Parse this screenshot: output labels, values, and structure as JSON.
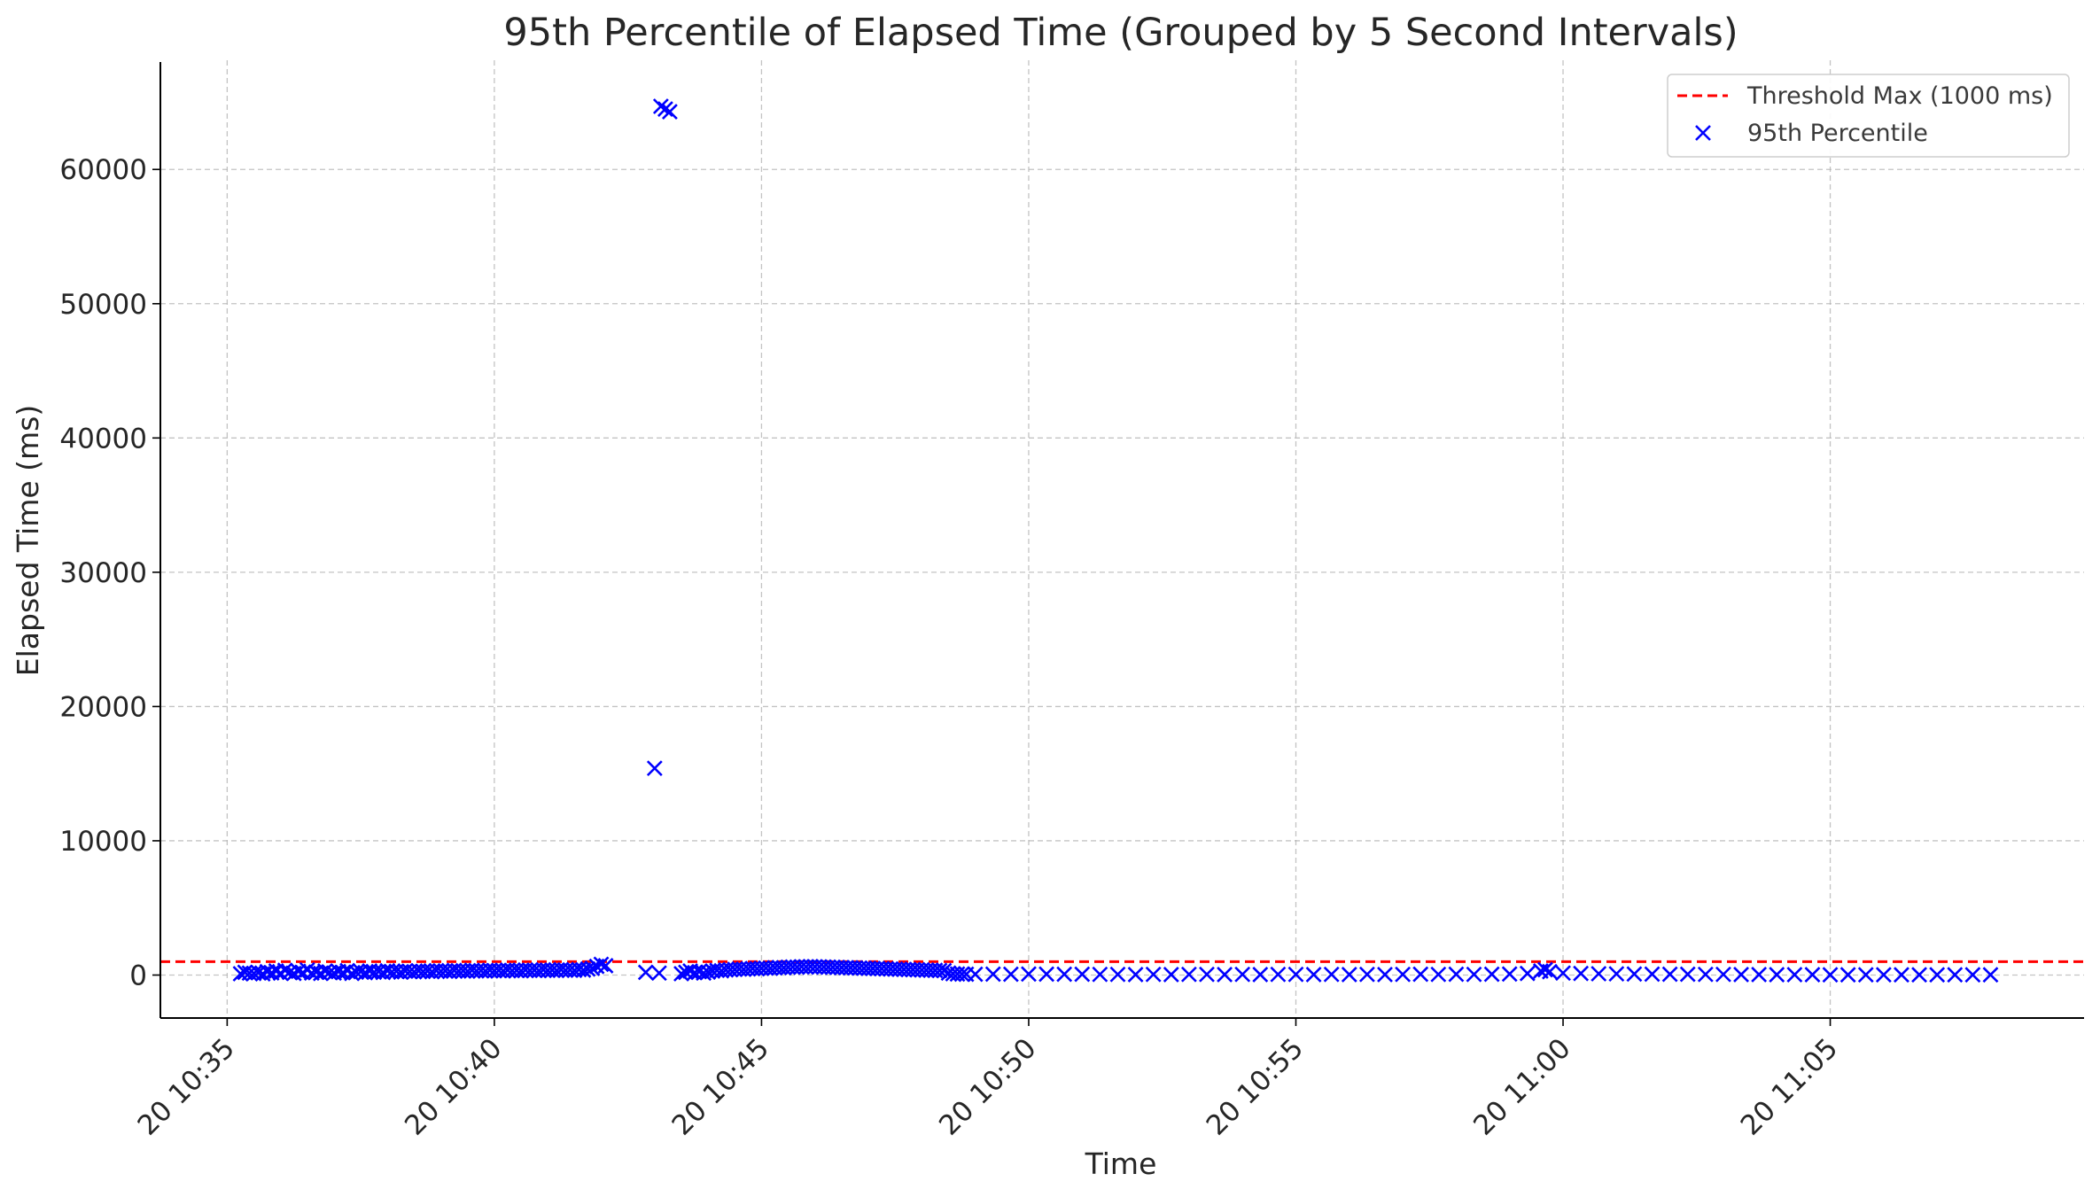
{
  "chart_data": {
    "type": "scatter",
    "title": "95th Percentile of Elapsed Time (Grouped by 5 Second Intervals)",
    "xlabel": "Time",
    "ylabel": "Elapsed Time (ms)",
    "x_ticks": [
      "20 10:35",
      "20 10:40",
      "20 10:45",
      "20 10:50",
      "20 10:55",
      "20 11:00",
      "20 11:05"
    ],
    "y_ticks": [
      "0",
      "10000",
      "20000",
      "30000",
      "40000",
      "50000",
      "60000"
    ],
    "xlim": [
      "10:33:45",
      "11:09:45"
    ],
    "ylim": [
      -3200,
      68000
    ],
    "grid": true,
    "legend_position": "top-right",
    "threshold": {
      "name": "Threshold Max (1000 ms)",
      "value": 1000,
      "color": "#ff0000",
      "style": "dashed"
    },
    "series": [
      {
        "name": "95th Percentile",
        "marker": "x",
        "color": "#0000ff",
        "points": [
          [
            "10:35:15",
            100
          ],
          [
            "10:35:20",
            200
          ],
          [
            "10:35:25",
            150
          ],
          [
            "10:35:30",
            120
          ],
          [
            "10:35:35",
            180
          ],
          [
            "10:35:40",
            90
          ],
          [
            "10:35:45",
            250
          ],
          [
            "10:35:50",
            160
          ],
          [
            "10:35:55",
            300
          ],
          [
            "10:36:00",
            140
          ],
          [
            "10:36:05",
            350
          ],
          [
            "10:36:10",
            200
          ],
          [
            "10:36:15",
            120
          ],
          [
            "10:36:20",
            280
          ],
          [
            "10:36:25",
            180
          ],
          [
            "10:36:30",
            380
          ],
          [
            "10:36:35",
            150
          ],
          [
            "10:36:40",
            230
          ],
          [
            "10:36:45",
            120
          ],
          [
            "10:36:50",
            300
          ],
          [
            "10:36:55",
            200
          ],
          [
            "10:37:00",
            150
          ],
          [
            "10:37:05",
            260
          ],
          [
            "10:37:10",
            180
          ],
          [
            "10:37:15",
            330
          ],
          [
            "10:37:20",
            120
          ],
          [
            "10:37:25",
            220
          ],
          [
            "10:37:30",
            260
          ],
          [
            "10:37:35",
            180
          ],
          [
            "10:37:40",
            300
          ],
          [
            "10:37:45",
            210
          ],
          [
            "10:37:50",
            260
          ],
          [
            "10:37:55",
            190
          ],
          [
            "10:38:00",
            320
          ],
          [
            "10:38:05",
            240
          ],
          [
            "10:38:10",
            280
          ],
          [
            "10:38:15",
            220
          ],
          [
            "10:38:20",
            300
          ],
          [
            "10:38:25",
            260
          ],
          [
            "10:38:30",
            240
          ],
          [
            "10:38:35",
            310
          ],
          [
            "10:38:40",
            270
          ],
          [
            "10:38:45",
            300
          ],
          [
            "10:38:50",
            250
          ],
          [
            "10:38:55",
            330
          ],
          [
            "10:39:00",
            290
          ],
          [
            "10:39:05",
            310
          ],
          [
            "10:39:10",
            270
          ],
          [
            "10:39:15",
            340
          ],
          [
            "10:39:20",
            300
          ],
          [
            "10:39:25",
            320
          ],
          [
            "10:39:30",
            290
          ],
          [
            "10:39:35",
            350
          ],
          [
            "10:39:40",
            310
          ],
          [
            "10:39:45",
            330
          ],
          [
            "10:39:50",
            300
          ],
          [
            "10:39:55",
            360
          ],
          [
            "10:40:00",
            320
          ],
          [
            "10:40:05",
            340
          ],
          [
            "10:40:10",
            310
          ],
          [
            "10:40:15",
            370
          ],
          [
            "10:40:20",
            330
          ],
          [
            "10:40:25",
            350
          ],
          [
            "10:40:30",
            320
          ],
          [
            "10:40:35",
            380
          ],
          [
            "10:40:40",
            340
          ],
          [
            "10:40:45",
            360
          ],
          [
            "10:40:50",
            330
          ],
          [
            "10:40:55",
            390
          ],
          [
            "10:41:00",
            350
          ],
          [
            "10:41:05",
            370
          ],
          [
            "10:41:10",
            340
          ],
          [
            "10:41:15",
            400
          ],
          [
            "10:41:20",
            360
          ],
          [
            "10:41:25",
            380
          ],
          [
            "10:41:30",
            350
          ],
          [
            "10:41:35",
            410
          ],
          [
            "10:41:40",
            370
          ],
          [
            "10:41:45",
            450
          ],
          [
            "10:41:50",
            500
          ],
          [
            "10:41:55",
            650
          ],
          [
            "10:42:00",
            800
          ],
          [
            "10:42:05",
            700
          ],
          [
            "10:42:50",
            200
          ],
          [
            "10:43:05",
            150
          ],
          [
            "10:43:00",
            15400
          ],
          [
            "10:43:07",
            64700
          ],
          [
            "10:43:12",
            64500
          ],
          [
            "10:43:17",
            64300
          ],
          [
            "10:43:30",
            100
          ],
          [
            "10:43:35",
            200
          ],
          [
            "10:43:40",
            300
          ],
          [
            "10:43:45",
            180
          ],
          [
            "10:43:50",
            250
          ],
          [
            "10:43:55",
            150
          ],
          [
            "10:44:00",
            220
          ],
          [
            "10:44:05",
            300
          ],
          [
            "10:44:10",
            350
          ],
          [
            "10:44:15",
            320
          ],
          [
            "10:44:20",
            380
          ],
          [
            "10:44:25",
            400
          ],
          [
            "10:44:30",
            420
          ],
          [
            "10:44:35",
            450
          ],
          [
            "10:44:40",
            430
          ],
          [
            "10:44:45",
            460
          ],
          [
            "10:44:50",
            480
          ],
          [
            "10:44:55",
            470
          ],
          [
            "10:45:00",
            500
          ],
          [
            "10:45:05",
            520
          ],
          [
            "10:45:10",
            510
          ],
          [
            "10:45:15",
            540
          ],
          [
            "10:45:20",
            560
          ],
          [
            "10:45:25",
            550
          ],
          [
            "10:45:30",
            580
          ],
          [
            "10:45:35",
            600
          ],
          [
            "10:45:40",
            590
          ],
          [
            "10:45:45",
            620
          ],
          [
            "10:45:50",
            610
          ],
          [
            "10:45:55",
            630
          ],
          [
            "10:46:00",
            620
          ],
          [
            "10:46:05",
            610
          ],
          [
            "10:46:10",
            600
          ],
          [
            "10:46:15",
            590
          ],
          [
            "10:46:20",
            580
          ],
          [
            "10:46:25",
            570
          ],
          [
            "10:46:30",
            560
          ],
          [
            "10:46:35",
            550
          ],
          [
            "10:46:40",
            540
          ],
          [
            "10:46:45",
            530
          ],
          [
            "10:46:50",
            520
          ],
          [
            "10:46:55",
            510
          ],
          [
            "10:47:00",
            500
          ],
          [
            "10:47:05",
            490
          ],
          [
            "10:47:10",
            480
          ],
          [
            "10:47:15",
            470
          ],
          [
            "10:47:20",
            460
          ],
          [
            "10:47:25",
            450
          ],
          [
            "10:47:30",
            440
          ],
          [
            "10:47:35",
            430
          ],
          [
            "10:47:40",
            420
          ],
          [
            "10:47:45",
            410
          ],
          [
            "10:47:50",
            400
          ],
          [
            "10:47:55",
            390
          ],
          [
            "10:48:00",
            380
          ],
          [
            "10:48:05",
            370
          ],
          [
            "10:48:10",
            360
          ],
          [
            "10:48:15",
            350
          ],
          [
            "10:48:20",
            340
          ],
          [
            "10:48:25",
            330
          ],
          [
            "10:48:30",
            150
          ],
          [
            "10:48:35",
            100
          ],
          [
            "10:48:40",
            80
          ],
          [
            "10:48:45",
            70
          ],
          [
            "10:48:50",
            60
          ],
          [
            "10:49:00",
            60
          ],
          [
            "10:49:20",
            70
          ],
          [
            "10:49:40",
            60
          ],
          [
            "10:50:00",
            80
          ],
          [
            "10:50:20",
            70
          ],
          [
            "10:50:40",
            60
          ],
          [
            "10:51:00",
            60
          ],
          [
            "10:51:20",
            50
          ],
          [
            "10:51:40",
            50
          ],
          [
            "10:52:00",
            40
          ],
          [
            "10:52:20",
            50
          ],
          [
            "10:52:40",
            40
          ],
          [
            "10:53:00",
            50
          ],
          [
            "10:53:20",
            50
          ],
          [
            "10:53:40",
            40
          ],
          [
            "10:54:00",
            50
          ],
          [
            "10:54:20",
            40
          ],
          [
            "10:54:40",
            50
          ],
          [
            "10:55:00",
            50
          ],
          [
            "10:55:20",
            40
          ],
          [
            "10:55:40",
            50
          ],
          [
            "10:56:00",
            40
          ],
          [
            "10:56:20",
            50
          ],
          [
            "10:56:40",
            40
          ],
          [
            "10:57:00",
            50
          ],
          [
            "10:57:20",
            60
          ],
          [
            "10:57:40",
            50
          ],
          [
            "10:58:00",
            60
          ],
          [
            "10:58:20",
            50
          ],
          [
            "10:58:40",
            60
          ],
          [
            "10:59:00",
            80
          ],
          [
            "10:59:20",
            120
          ],
          [
            "10:59:35",
            300
          ],
          [
            "10:59:40",
            400
          ],
          [
            "10:59:45",
            250
          ],
          [
            "11:00:00",
            150
          ],
          [
            "11:00:20",
            120
          ],
          [
            "11:00:40",
            100
          ],
          [
            "11:01:00",
            90
          ],
          [
            "11:01:20",
            80
          ],
          [
            "11:01:40",
            70
          ],
          [
            "11:02:00",
            60
          ],
          [
            "11:02:20",
            60
          ],
          [
            "11:02:40",
            50
          ],
          [
            "11:03:00",
            50
          ],
          [
            "11:03:20",
            40
          ],
          [
            "11:03:40",
            40
          ],
          [
            "11:04:00",
            30
          ],
          [
            "11:04:20",
            30
          ],
          [
            "11:04:40",
            30
          ],
          [
            "11:05:00",
            20
          ],
          [
            "11:05:20",
            20
          ],
          [
            "11:05:40",
            20
          ],
          [
            "11:06:00",
            20
          ],
          [
            "11:06:20",
            20
          ],
          [
            "11:06:40",
            20
          ],
          [
            "11:07:00",
            20
          ],
          [
            "11:07:20",
            20
          ],
          [
            "11:07:40",
            20
          ],
          [
            "11:08:00",
            20
          ]
        ]
      }
    ]
  }
}
